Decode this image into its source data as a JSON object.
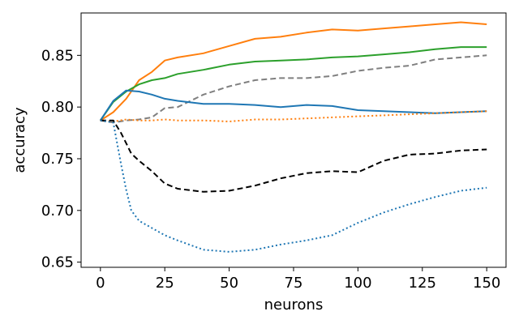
{
  "chart_data": {
    "type": "line",
    "xlabel": "neurons",
    "ylabel": "accuracy",
    "xlim": [
      -7.5,
      157.5
    ],
    "ylim": [
      0.645,
      0.891
    ],
    "xticks": [
      0,
      25,
      50,
      75,
      100,
      125,
      150
    ],
    "yticks": [
      0.65,
      0.7,
      0.75,
      0.8,
      0.85
    ],
    "xtick_labels": [
      "0",
      "25",
      "50",
      "75",
      "100",
      "125",
      "150"
    ],
    "ytick_labels": [
      "0.65",
      "0.70",
      "0.75",
      "0.80",
      "0.85"
    ],
    "grid": false,
    "legend": "none",
    "series": [
      {
        "color": "#ff7f0e",
        "style": "solid",
        "x": [
          0,
          5,
          10,
          15,
          20,
          25,
          30,
          40,
          50,
          60,
          70,
          80,
          90,
          100,
          110,
          120,
          130,
          140,
          150
        ],
        "y": [
          0.787,
          0.795,
          0.808,
          0.826,
          0.834,
          0.845,
          0.848,
          0.852,
          0.859,
          0.866,
          0.868,
          0.872,
          0.875,
          0.874,
          0.876,
          0.878,
          0.88,
          0.882,
          0.88
        ]
      },
      {
        "color": "#2ca02c",
        "style": "solid",
        "x": [
          0,
          5,
          10,
          15,
          20,
          25,
          30,
          40,
          50,
          60,
          70,
          80,
          90,
          100,
          110,
          120,
          130,
          140,
          150
        ],
        "y": [
          0.787,
          0.805,
          0.815,
          0.822,
          0.826,
          0.828,
          0.832,
          0.836,
          0.841,
          0.844,
          0.845,
          0.846,
          0.848,
          0.849,
          0.851,
          0.853,
          0.856,
          0.858,
          0.858
        ]
      },
      {
        "color": "#7f7f7f",
        "style": "dashed",
        "x": [
          0,
          5,
          10,
          15,
          20,
          25,
          30,
          40,
          50,
          60,
          70,
          80,
          90,
          100,
          110,
          120,
          130,
          140,
          150
        ],
        "y": [
          0.787,
          0.785,
          0.787,
          0.788,
          0.79,
          0.799,
          0.8,
          0.812,
          0.82,
          0.826,
          0.828,
          0.828,
          0.83,
          0.835,
          0.838,
          0.84,
          0.846,
          0.848,
          0.85
        ]
      },
      {
        "color": "#1f77b4",
        "style": "solid",
        "x": [
          0,
          5,
          10,
          15,
          20,
          25,
          30,
          40,
          50,
          60,
          70,
          80,
          90,
          100,
          110,
          120,
          130,
          140,
          150
        ],
        "y": [
          0.787,
          0.806,
          0.816,
          0.815,
          0.812,
          0.808,
          0.806,
          0.803,
          0.803,
          0.802,
          0.8,
          0.802,
          0.801,
          0.797,
          0.796,
          0.795,
          0.794,
          0.795,
          0.796
        ]
      },
      {
        "color": "#ff7f0e",
        "style": "dotted",
        "x": [
          0,
          5,
          10,
          15,
          20,
          25,
          30,
          40,
          50,
          60,
          70,
          80,
          90,
          100,
          110,
          120,
          130,
          140,
          150
        ],
        "y": [
          0.787,
          0.786,
          0.788,
          0.787,
          0.787,
          0.788,
          0.787,
          0.787,
          0.786,
          0.788,
          0.788,
          0.789,
          0.79,
          0.791,
          0.792,
          0.793,
          0.794,
          0.795,
          0.796
        ]
      },
      {
        "color": "#000000",
        "style": "dashed",
        "x": [
          0,
          5,
          8,
          10,
          12,
          15,
          20,
          25,
          30,
          40,
          50,
          60,
          70,
          80,
          90,
          100,
          110,
          120,
          130,
          140,
          150
        ],
        "y": [
          0.787,
          0.787,
          0.775,
          0.765,
          0.755,
          0.748,
          0.738,
          0.726,
          0.721,
          0.718,
          0.719,
          0.724,
          0.731,
          0.736,
          0.738,
          0.737,
          0.748,
          0.754,
          0.755,
          0.758,
          0.759
        ]
      },
      {
        "color": "#1f77b4",
        "style": "dotted",
        "x": [
          0,
          5,
          8,
          10,
          12,
          15,
          20,
          25,
          30,
          40,
          50,
          60,
          70,
          80,
          90,
          100,
          110,
          120,
          130,
          140,
          150
        ],
        "y": [
          0.787,
          0.785,
          0.745,
          0.72,
          0.7,
          0.69,
          0.683,
          0.676,
          0.671,
          0.662,
          0.66,
          0.662,
          0.667,
          0.671,
          0.676,
          0.688,
          0.698,
          0.706,
          0.713,
          0.719,
          0.722
        ]
      }
    ]
  }
}
